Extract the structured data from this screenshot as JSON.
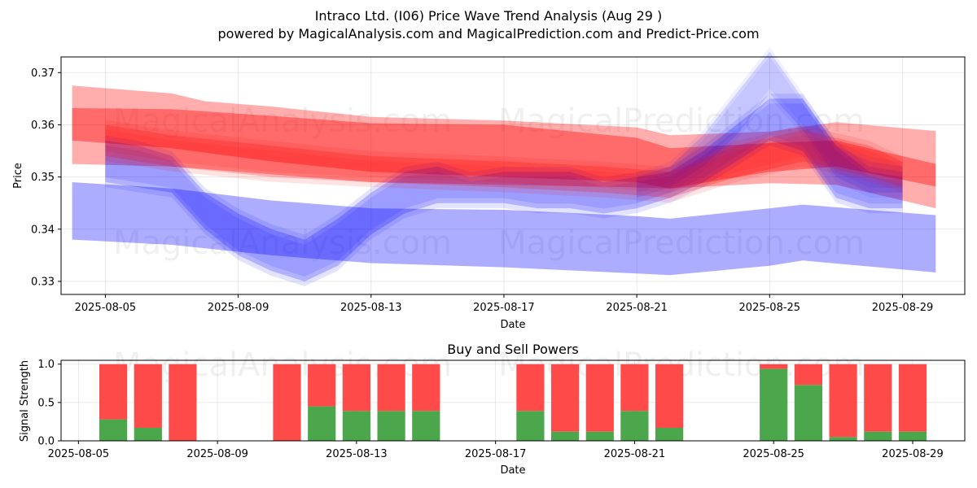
{
  "title_line1": "Intraco Ltd. (I06) Price Wave Trend Analysis (Aug 29 )",
  "title_line2": "powered by MagicalAnalysis.com and MagicalPrediction.com and Predict-Price.com",
  "watermarks": [
    "MagicalAnalysis.com",
    "MagicalPrediction.com"
  ],
  "colors": {
    "bull": "#ff0000",
    "bear": "#0000ff",
    "buy": "#4ca64c",
    "sell": "#ff4a4a",
    "grid": "#b0b0b0"
  },
  "chart_data": [
    {
      "type": "area",
      "title": "",
      "xlabel": "Date",
      "ylabel": "Price",
      "ylim": [
        0.3275,
        0.373
      ],
      "xlim": [
        "2025-08-03T16:00",
        "2025-08-30T21:00"
      ],
      "grid": true,
      "x_ticks": [
        "2025-08-05",
        "2025-08-09",
        "2025-08-13",
        "2025-08-17",
        "2025-08-21",
        "2025-08-25",
        "2025-08-29"
      ],
      "y_ticks": [
        0.33,
        0.34,
        0.35,
        0.36,
        0.37
      ],
      "series": [
        {
          "color": "red",
          "band": "channel",
          "x": [
            "2025-08-04",
            "2025-08-07",
            "2025-08-08",
            "2025-08-10",
            "2025-08-13",
            "2025-08-17",
            "2025-08-21",
            "2025-08-22",
            "2025-08-25",
            "2025-08-27",
            "2025-08-30"
          ],
          "low": [
            0.3525,
            0.352,
            0.3515,
            0.3505,
            0.349,
            0.3485,
            0.348,
            0.3478,
            0.3488,
            0.3485,
            0.344
          ],
          "high": [
            0.3675,
            0.366,
            0.3645,
            0.3635,
            0.3615,
            0.3608,
            0.3595,
            0.358,
            0.3587,
            0.3605,
            0.3588
          ]
        },
        {
          "color": "red",
          "band": "trend",
          "x": [
            "2025-08-04",
            "2025-08-07",
            "2025-08-10",
            "2025-08-13",
            "2025-08-17",
            "2025-08-21",
            "2025-08-22",
            "2025-08-25",
            "2025-08-27",
            "2025-08-30"
          ],
          "low": [
            0.357,
            0.3555,
            0.353,
            0.351,
            0.35,
            0.349,
            0.3478,
            0.351,
            0.352,
            0.3482
          ],
          "high": [
            0.3632,
            0.363,
            0.3617,
            0.3603,
            0.36,
            0.3575,
            0.3555,
            0.3565,
            0.357,
            0.3525
          ]
        },
        {
          "color": "blue",
          "band": "channel",
          "x": [
            "2025-08-04",
            "2025-08-07",
            "2025-08-10",
            "2025-08-13",
            "2025-08-17",
            "2025-08-21",
            "2025-08-22",
            "2025-08-25",
            "2025-08-26",
            "2025-08-30"
          ],
          "low": [
            0.338,
            0.337,
            0.335,
            0.3335,
            0.3327,
            0.3315,
            0.3312,
            0.333,
            0.334,
            0.3317
          ],
          "high": [
            0.349,
            0.3478,
            0.3455,
            0.344,
            0.3437,
            0.3425,
            0.342,
            0.344,
            0.3447,
            0.3427
          ]
        },
        {
          "color": "blue",
          "band": "wave",
          "x": [
            "2025-08-05",
            "2025-08-06",
            "2025-08-07",
            "2025-08-08",
            "2025-08-09",
            "2025-08-10",
            "2025-08-11",
            "2025-08-12",
            "2025-08-13",
            "2025-08-14",
            "2025-08-15",
            "2025-08-16",
            "2025-08-17",
            "2025-08-18",
            "2025-08-19",
            "2025-08-20",
            "2025-08-21",
            "2025-08-22",
            "2025-08-23",
            "2025-08-24",
            "2025-08-25",
            "2025-08-26",
            "2025-08-27",
            "2025-08-28",
            "2025-08-29"
          ],
          "low": [
            0.349,
            0.348,
            0.347,
            0.34,
            0.335,
            0.332,
            0.33,
            0.333,
            0.339,
            0.343,
            0.345,
            0.345,
            0.345,
            0.344,
            0.344,
            0.343,
            0.344,
            0.346,
            0.349,
            0.353,
            0.357,
            0.355,
            0.346,
            0.344,
            0.344
          ],
          "high": [
            0.357,
            0.356,
            0.354,
            0.347,
            0.343,
            0.34,
            0.338,
            0.342,
            0.347,
            0.351,
            0.352,
            0.35,
            0.351,
            0.351,
            0.351,
            0.349,
            0.35,
            0.351,
            0.355,
            0.36,
            0.365,
            0.365,
            0.356,
            0.351,
            0.35
          ]
        },
        {
          "color": "blue",
          "band": "spike",
          "x": [
            "2025-08-21",
            "2025-08-22",
            "2025-08-23",
            "2025-08-24",
            "2025-08-25",
            "2025-08-26",
            "2025-08-27",
            "2025-08-28",
            "2025-08-29"
          ],
          "low": [
            0.346,
            0.348,
            0.352,
            0.358,
            0.366,
            0.359,
            0.35,
            0.347,
            0.347
          ],
          "high": [
            0.35,
            0.352,
            0.358,
            0.366,
            0.374,
            0.365,
            0.356,
            0.353,
            0.352
          ]
        },
        {
          "color": "red",
          "band": "wave",
          "x": [
            "2025-08-05",
            "2025-08-07",
            "2025-08-10",
            "2025-08-13",
            "2025-08-17",
            "2025-08-20",
            "2025-08-22",
            "2025-08-24",
            "2025-08-26",
            "2025-08-28",
            "2025-08-29"
          ],
          "low": [
            0.354,
            0.352,
            0.35,
            0.349,
            0.348,
            0.347,
            0.346,
            0.35,
            0.353,
            0.35,
            0.348
          ],
          "high": [
            0.36,
            0.358,
            0.356,
            0.354,
            0.353,
            0.352,
            0.351,
            0.356,
            0.359,
            0.356,
            0.353
          ]
        }
      ]
    },
    {
      "type": "bar",
      "title": "Buy and Sell Powers",
      "xlabel": "Date",
      "ylabel": "Signal Strength",
      "ylim": [
        0,
        1.05
      ],
      "xlim": [
        "2025-08-04T12:00",
        "2025-08-30T12:00"
      ],
      "grid": true,
      "x_ticks": [
        "2025-08-05",
        "2025-08-09",
        "2025-08-13",
        "2025-08-17",
        "2025-08-21",
        "2025-08-25",
        "2025-08-29"
      ],
      "y_ticks": [
        0.0,
        0.5,
        1.0
      ],
      "stacked": true,
      "categories": [
        "2025-08-06",
        "2025-08-07",
        "2025-08-08",
        "2025-08-11",
        "2025-08-12",
        "2025-08-13",
        "2025-08-14",
        "2025-08-15",
        "2025-08-18",
        "2025-08-19",
        "2025-08-20",
        "2025-08-21",
        "2025-08-22",
        "2025-08-25",
        "2025-08-26",
        "2025-08-27",
        "2025-08-28",
        "2025-08-29"
      ],
      "series": [
        {
          "name": "Buy",
          "values": [
            0.28,
            0.17,
            0.0,
            0.0,
            0.45,
            0.39,
            0.39,
            0.39,
            0.39,
            0.12,
            0.12,
            0.39,
            0.17,
            0.94,
            0.73,
            0.05,
            0.12,
            0.12
          ]
        },
        {
          "name": "Sell",
          "values": [
            0.72,
            0.83,
            1.0,
            1.0,
            0.55,
            0.61,
            0.61,
            0.61,
            0.61,
            0.88,
            0.88,
            0.61,
            0.83,
            0.06,
            0.27,
            0.95,
            0.88,
            0.88
          ]
        }
      ]
    }
  ]
}
